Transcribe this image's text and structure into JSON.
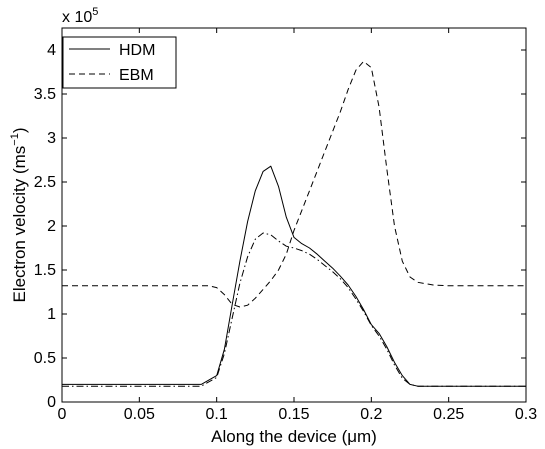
{
  "chart_data": {
    "type": "line",
    "title": "",
    "xlabel": "Along the device (μm)",
    "ylabel_main": "Electron velocity (ms",
    "ylabel_sup": "−1",
    "ylabel_close": ")",
    "y_multiplier_base": "x 10",
    "y_multiplier_exp": "5",
    "xlim": [
      0,
      0.3
    ],
    "ylim": [
      0,
      4.25
    ],
    "y_scale_factor": 100000,
    "x_ticks": [
      0,
      0.05,
      0.1,
      0.15,
      0.2,
      0.25,
      0.3
    ],
    "x_tick_labels": [
      "0",
      "0.05",
      "0.1",
      "0.15",
      "0.2",
      "0.25",
      "0.3"
    ],
    "y_ticks": [
      0,
      0.5,
      1,
      1.5,
      2,
      2.5,
      3,
      3.5,
      4
    ],
    "y_tick_labels": [
      "0",
      "0.5",
      "1",
      "1.5",
      "2",
      "2.5",
      "3",
      "3.5",
      "4"
    ],
    "grid": false,
    "legend_position": "top-left",
    "series": [
      {
        "name": "HDM",
        "style": "solid",
        "in_legend": true,
        "x": [
          0,
          0.09,
          0.1,
          0.105,
          0.11,
          0.115,
          0.12,
          0.125,
          0.13,
          0.135,
          0.14,
          0.145,
          0.15,
          0.155,
          0.16,
          0.165,
          0.17,
          0.175,
          0.18,
          0.185,
          0.19,
          0.195,
          0.2,
          0.205,
          0.21,
          0.215,
          0.22,
          0.225,
          0.23,
          0.24,
          0.3
        ],
        "y": [
          0.2,
          0.2,
          0.3,
          0.6,
          1.1,
          1.6,
          2.05,
          2.4,
          2.62,
          2.68,
          2.45,
          2.1,
          1.87,
          1.8,
          1.75,
          1.68,
          1.6,
          1.52,
          1.43,
          1.33,
          1.2,
          1.05,
          0.88,
          0.78,
          0.63,
          0.45,
          0.3,
          0.2,
          0.18,
          0.18,
          0.18
        ]
      },
      {
        "name": "EBM",
        "style": "dashed",
        "in_legend": true,
        "x": [
          0,
          0.095,
          0.1,
          0.105,
          0.11,
          0.115,
          0.12,
          0.125,
          0.13,
          0.135,
          0.14,
          0.145,
          0.15,
          0.16,
          0.17,
          0.18,
          0.185,
          0.19,
          0.195,
          0.2,
          0.205,
          0.21,
          0.215,
          0.22,
          0.225,
          0.23,
          0.24,
          0.25,
          0.3
        ],
        "y": [
          1.32,
          1.32,
          1.3,
          1.22,
          1.11,
          1.08,
          1.1,
          1.18,
          1.28,
          1.38,
          1.5,
          1.68,
          1.95,
          2.4,
          2.85,
          3.3,
          3.55,
          3.77,
          3.87,
          3.8,
          3.35,
          2.65,
          2.0,
          1.6,
          1.42,
          1.36,
          1.33,
          1.32,
          1.32
        ]
      },
      {
        "name": "",
        "style": "dashdot",
        "in_legend": false,
        "x": [
          0,
          0.09,
          0.1,
          0.105,
          0.11,
          0.115,
          0.12,
          0.125,
          0.13,
          0.135,
          0.14,
          0.145,
          0.15,
          0.155,
          0.16,
          0.165,
          0.17,
          0.175,
          0.18,
          0.185,
          0.19,
          0.195,
          0.2,
          0.205,
          0.21,
          0.215,
          0.22,
          0.225,
          0.23,
          0.24,
          0.3
        ],
        "y": [
          0.18,
          0.18,
          0.28,
          0.55,
          0.95,
          1.35,
          1.65,
          1.85,
          1.92,
          1.9,
          1.83,
          1.77,
          1.75,
          1.72,
          1.68,
          1.62,
          1.55,
          1.48,
          1.4,
          1.3,
          1.17,
          1.03,
          0.87,
          0.75,
          0.6,
          0.42,
          0.27,
          0.2,
          0.18,
          0.18,
          0.18
        ]
      }
    ]
  }
}
